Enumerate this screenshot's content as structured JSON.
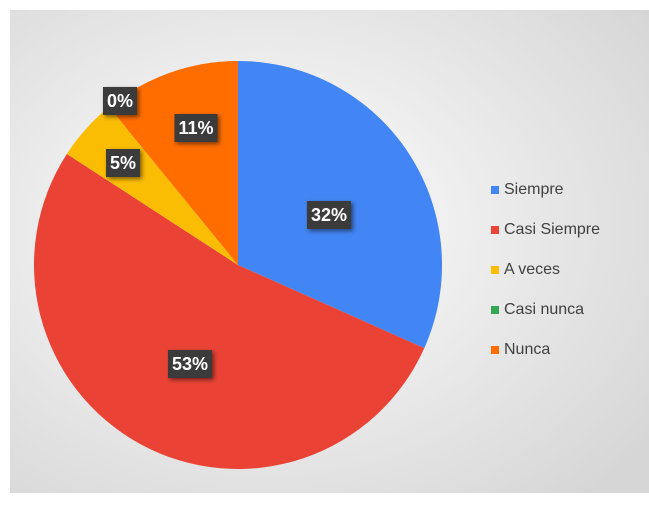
{
  "chart_data": {
    "type": "pie",
    "categories": [
      "Siempre",
      "Casi Siempre",
      "A veces",
      "Casi nunca",
      "Nunca"
    ],
    "values": [
      32,
      53,
      5,
      0,
      11
    ],
    "value_labels": [
      "32%",
      "53%",
      "5%",
      "0%",
      "11%"
    ],
    "colors": [
      "#4285f4",
      "#ea4335",
      "#fbbc04",
      "#34a853",
      "#ff6d01"
    ],
    "legend": "right"
  }
}
